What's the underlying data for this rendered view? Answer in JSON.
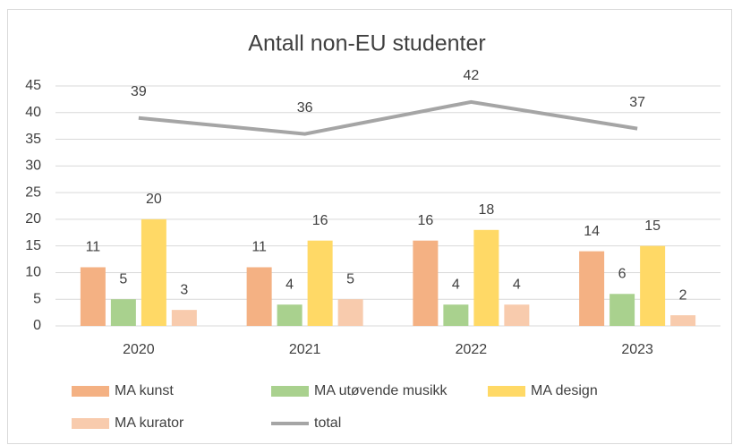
{
  "chart_data": {
    "type": "bar",
    "title": "Antall non-EU studenter",
    "categories": [
      "2020",
      "2021",
      "2022",
      "2023"
    ],
    "series": [
      {
        "name": "MA kunst",
        "color": "#f4b183",
        "values": [
          11,
          11,
          16,
          14
        ]
      },
      {
        "name": "MA utøvende musikk",
        "color": "#a9d18e",
        "values": [
          5,
          4,
          4,
          6
        ]
      },
      {
        "name": "MA design",
        "color": "#ffd966",
        "values": [
          20,
          16,
          18,
          15
        ]
      },
      {
        "name": "MA kurator",
        "color": "#f8cbad",
        "values": [
          3,
          5,
          4,
          2
        ]
      },
      {
        "name": "total",
        "type": "line",
        "color": "#a5a5a5",
        "values": [
          39,
          36,
          42,
          37
        ]
      }
    ],
    "ylim": [
      0,
      45
    ],
    "yticks": [
      0,
      5,
      10,
      15,
      20,
      25,
      30,
      35,
      40,
      45
    ],
    "grid": true,
    "legend": "bottom"
  }
}
